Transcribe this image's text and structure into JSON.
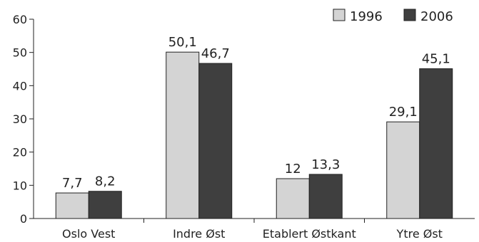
{
  "chart_data": {
    "type": "bar",
    "categories": [
      "Oslo Vest",
      "Indre Øst",
      "Etablert Østkant",
      "Ytre Øst"
    ],
    "series": [
      {
        "name": "1996",
        "values": [
          7.7,
          50.1,
          12,
          29.1
        ],
        "labels": [
          "7,7",
          "50,1",
          "12",
          "29,1"
        ],
        "color": "#d4d4d4"
      },
      {
        "name": "2006",
        "values": [
          8.2,
          46.7,
          13.3,
          45.1
        ],
        "labels": [
          "8,2",
          "46,7",
          "13,3",
          "45,1"
        ],
        "color": "#3f3f3f"
      }
    ],
    "yticks": [
      0,
      10,
      20,
      30,
      40,
      50,
      60
    ],
    "ylim": [
      0,
      60
    ],
    "title": "",
    "xlabel": "",
    "ylabel": "",
    "grid": false,
    "legend": "top-right"
  }
}
